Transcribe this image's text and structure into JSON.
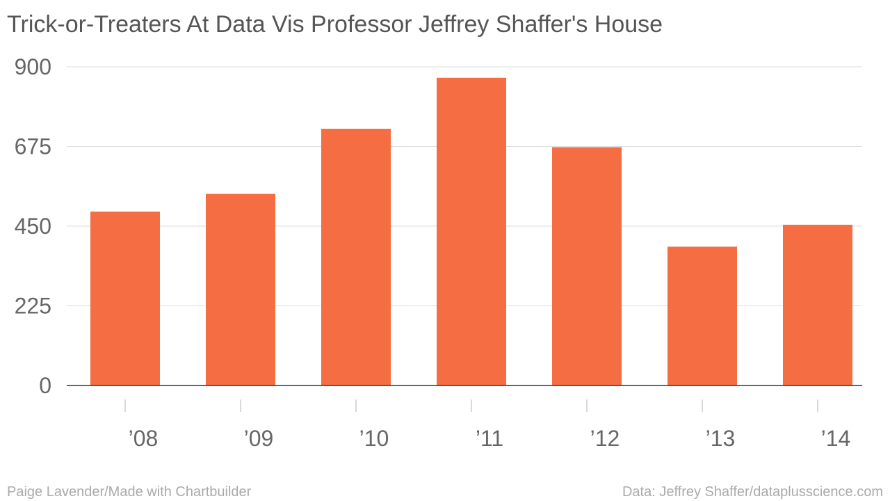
{
  "title": "Trick-or-Treaters At Data Vis Professor Jeffrey Shaffer's House",
  "credit_left": "Paige Lavender/Made with Chartbuilder",
  "credit_right": "Data: Jeffrey Shaffer/dataplusscience.com",
  "colors": {
    "bar": "#f46d43",
    "grid": "#dddddd",
    "text": "#555555"
  },
  "chart_data": {
    "type": "bar",
    "title": "Trick-or-Treaters At Data Vis Professor Jeffrey Shaffer's House",
    "categories": [
      "’08",
      "’09",
      "’10",
      "’11",
      "’12",
      "’13",
      "’14"
    ],
    "values": [
      491,
      541,
      725,
      869,
      673,
      392,
      454
    ],
    "ylim": [
      0,
      900
    ],
    "yticks": [
      "0",
      "225",
      "450",
      "675",
      "900"
    ],
    "grid": true,
    "legend": "none"
  }
}
